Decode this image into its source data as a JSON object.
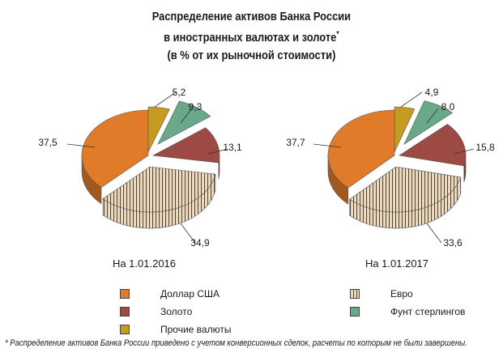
{
  "title_lines": [
    "Распределение активов Банка России",
    "в иностранных валютах и золоте",
    "(в % от их рыночной стоимости)"
  ],
  "title_mark": "*",
  "footnote": "* Распределение активов Банка России приведено с учетом конверсионных сделок, расчеты по которым  не были завершены.",
  "colors": {
    "usd": "#e07b2a",
    "gold": "#9e4a44",
    "other": "#c59b22",
    "gbp": "#6aa88a",
    "eur": "#e6d0b0"
  },
  "chart_data": [
    {
      "type": "pie",
      "title": "На 1.01.2016",
      "labels": [
        "Прочие валюты",
        "Фунт стерлингов",
        "Золото",
        "Евро",
        "Доллар США"
      ],
      "values": [
        5.2,
        9.3,
        13.1,
        34.9,
        37.5
      ],
      "value_labels": [
        "5,2",
        "9,3",
        "13,1",
        "34,9",
        "37,5"
      ]
    },
    {
      "type": "pie",
      "title": "На 1.01.2017",
      "labels": [
        "Прочие валюты",
        "Фунт стерлингов",
        "Золото",
        "Евро",
        "Доллар США"
      ],
      "values": [
        4.9,
        8.0,
        15.8,
        33.6,
        37.7
      ],
      "value_labels": [
        "4,9",
        "8.0",
        "15,8",
        "33,6",
        "37,7"
      ]
    }
  ],
  "legend": {
    "usd": "Доллар США",
    "gold": "Золото",
    "other": "Прочие валюты",
    "eur": "Евро",
    "gbp": "Фунт стерлингов"
  }
}
